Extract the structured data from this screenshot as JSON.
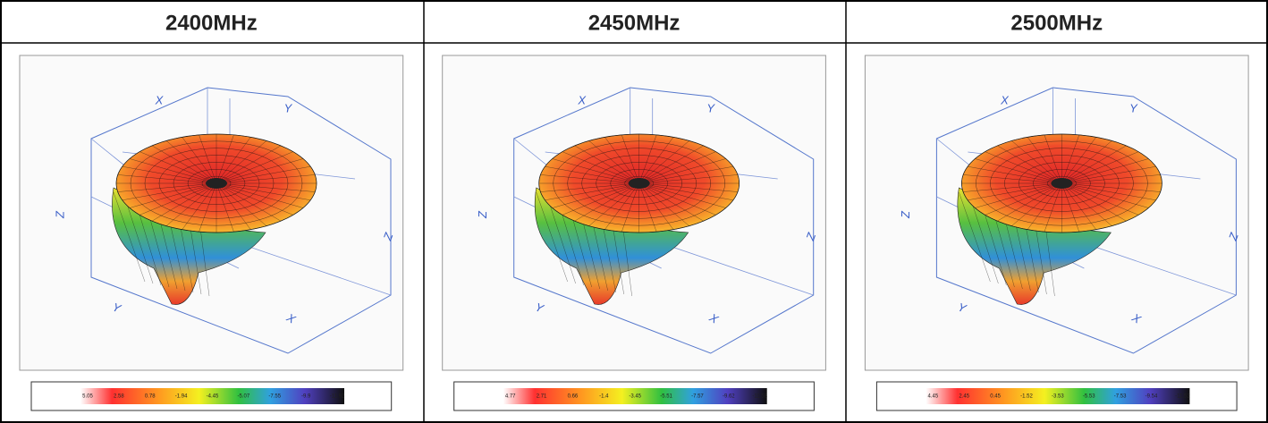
{
  "panels": [
    {
      "title": "2400MHz",
      "axis_labels": [
        "X",
        "Y",
        "Z",
        "Z",
        "Y",
        "X"
      ],
      "scale": [
        "5.05",
        "2.58",
        "0.78",
        "-1.94",
        "-4.45",
        "-5.07",
        "-7.55",
        "-9.9",
        "-11.92"
      ]
    },
    {
      "title": "2450MHz",
      "axis_labels": [
        "X",
        "Y",
        "Z",
        "Z",
        "Y",
        "X"
      ],
      "scale": [
        "4.77",
        "2.71",
        "0.66",
        "-1.4",
        "-3.45",
        "-5.51",
        "-7.57",
        "-9.62",
        "-11.58"
      ]
    },
    {
      "title": "2500MHz",
      "axis_labels": [
        "X",
        "Y",
        "Z",
        "Z",
        "Y",
        "X"
      ],
      "scale": [
        "4.45",
        "2.45",
        "0.45",
        "-1.52",
        "-3.53",
        "-5.53",
        "-7.53",
        "-9.54",
        "-11.52"
      ]
    }
  ]
}
